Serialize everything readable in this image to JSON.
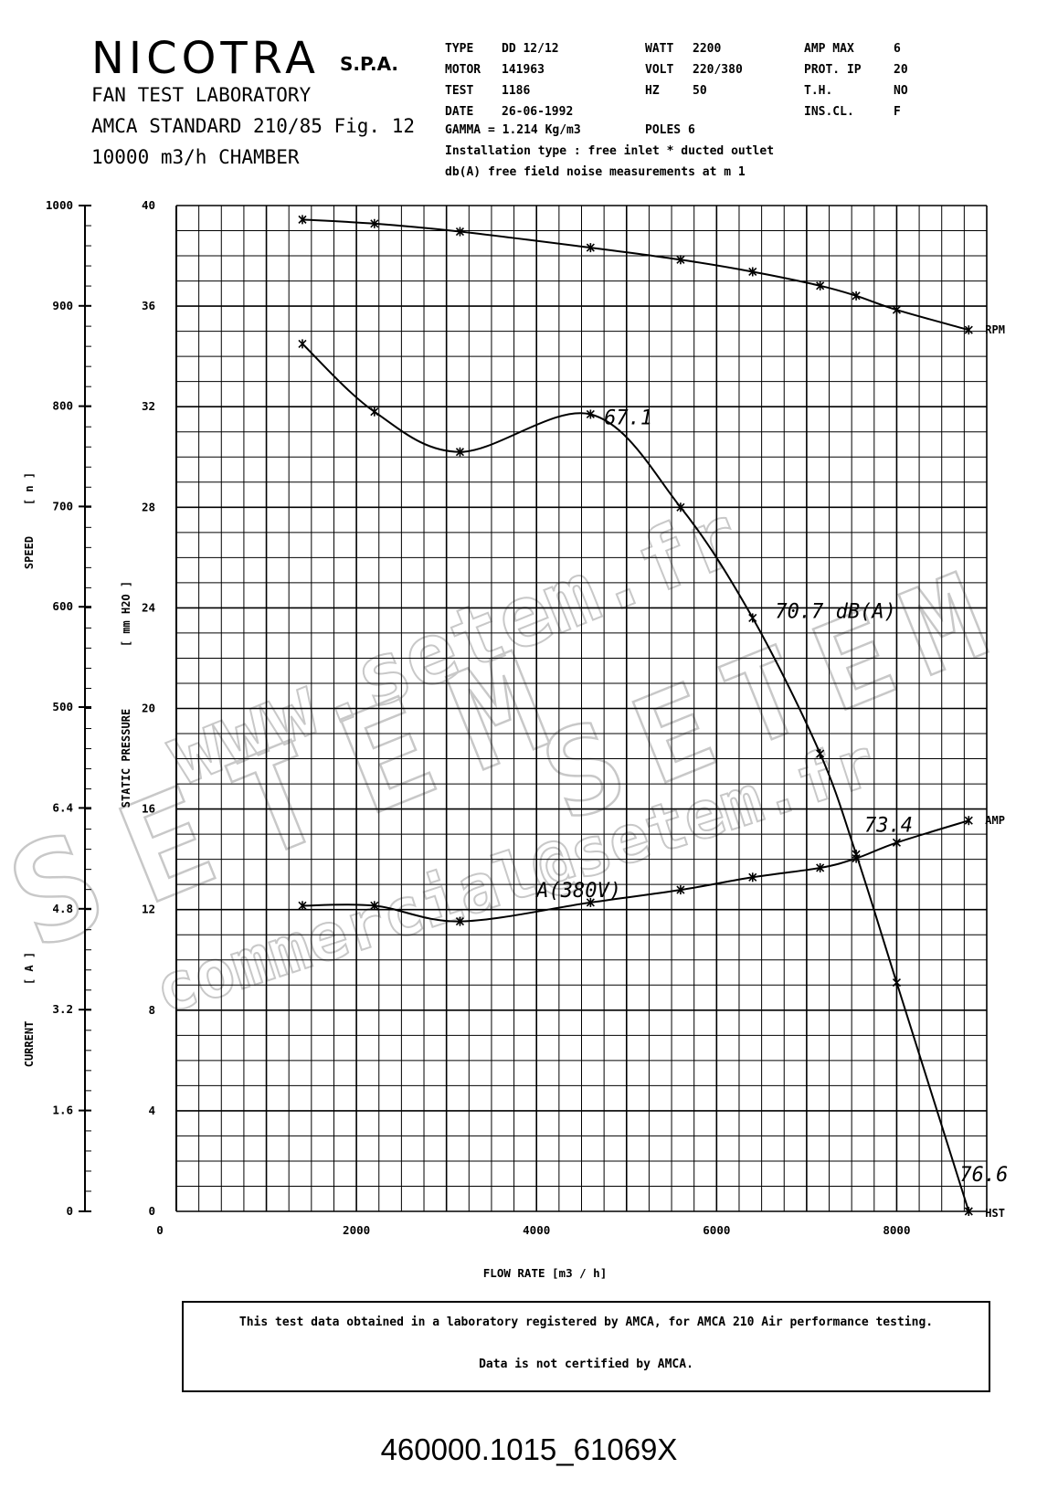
{
  "header": {
    "company": "NICOTRA",
    "company_suffix": "S.P.A.",
    "lab_line1": "FAN TEST LABORATORY",
    "lab_line2": "AMCA STANDARD 210/85 Fig. 12",
    "lab_line3": "10000 m3/h  CHAMBER"
  },
  "specs": {
    "col1": [
      {
        "label": "TYPE",
        "value": "DD 12/12"
      },
      {
        "label": "MOTOR",
        "value": "141963"
      },
      {
        "label": "TEST",
        "value": "1186"
      },
      {
        "label": "DATE",
        "value": "26-06-1992"
      }
    ],
    "col2": [
      {
        "label": "WATT",
        "value": "2200"
      },
      {
        "label": "VOLT",
        "value": "220/380"
      },
      {
        "label": "HZ",
        "value": "50"
      }
    ],
    "col3": [
      {
        "label": "AMP MAX",
        "value": "6"
      },
      {
        "label": "PROT.  IP",
        "value": "20"
      },
      {
        "label": "T.H.",
        "value": "NO"
      },
      {
        "label": "INS.CL.",
        "value": "F"
      }
    ],
    "gamma": "GAMMA = 1.214 Kg/m3",
    "poles": "POLES 6",
    "installation": "Installation type :  free inlet * ducted outlet",
    "noise": "db(A)  free field noise measurements at m  1"
  },
  "chart_data": {
    "type": "line",
    "xlabel": "FLOW RATE   [m3 / h]",
    "x_ticks": [
      "0",
      "2000",
      "4000",
      "6000",
      "8000"
    ],
    "xlim": [
      0,
      9000
    ],
    "axes": {
      "pressure": {
        "label": "STATIC PRESSURE",
        "unit": "[ mm H2O ]",
        "ylim": [
          0,
          40
        ],
        "ticks": [
          "0",
          "4",
          "8",
          "12",
          "16",
          "20",
          "24",
          "28",
          "32",
          "36",
          "40"
        ]
      },
      "speed": {
        "label": "SPEED",
        "unit": "[ n ]",
        "ylim": [
          500,
          1000
        ],
        "ticks": [
          "500",
          "600",
          "700",
          "800",
          "900",
          "1000"
        ]
      },
      "current": {
        "label": "CURRENT",
        "unit": "[ A ]",
        "ylim": [
          0,
          8
        ],
        "ticks": [
          "0",
          "1.6",
          "3.2",
          "4.8",
          "6.4"
        ]
      }
    },
    "series": [
      {
        "name": "RPM",
        "axis": "speed",
        "x": [
          1400,
          2200,
          3150,
          4600,
          5600,
          6400,
          7150,
          7550,
          8000,
          8800
        ],
        "y": [
          986,
          982,
          974,
          958,
          946,
          934,
          920,
          910,
          896,
          876
        ]
      },
      {
        "name": "AMP",
        "axis": "current",
        "x": [
          1400,
          2200,
          3150,
          4600,
          5600,
          6400,
          7150,
          7550,
          8000,
          8800
        ],
        "y": [
          4.85,
          4.85,
          4.6,
          4.9,
          5.1,
          5.3,
          5.45,
          5.6,
          5.85,
          6.2
        ]
      },
      {
        "name": "HST",
        "axis": "pressure",
        "x": [
          1400,
          2200,
          3150,
          4600,
          5600,
          6400,
          7150,
          7550,
          8000,
          8800
        ],
        "y": [
          34.5,
          31.8,
          30.2,
          31.7,
          28.0,
          23.6,
          18.2,
          14.2,
          9.1,
          0.0
        ]
      }
    ],
    "series_labels": [
      "RPM",
      "AMP",
      "HST"
    ],
    "annotations": [
      {
        "text": "67.1",
        "x": 4750,
        "y": 31.3
      },
      {
        "text": "70.7 dB(A)",
        "x": 6650,
        "y": 23.6
      },
      {
        "text": "73.4",
        "x": 7640,
        "y": 15.1
      },
      {
        "text": "A(380V)",
        "x": 4000,
        "y": 12.5
      },
      {
        "text": "76.6",
        "x": 8700,
        "y": 1.2
      }
    ],
    "grid": true
  },
  "certification": {
    "line1": "This test data obtained in a laboratory registered by AMCA, for AMCA 210 Air performance testing.",
    "line2": "Data is not certified by AMCA."
  },
  "document_number": "460000.1015_61069X",
  "watermark": {
    "line1": "www.setem.fr",
    "line2": "SETEM",
    "line3": "commercial@setem.fr"
  }
}
